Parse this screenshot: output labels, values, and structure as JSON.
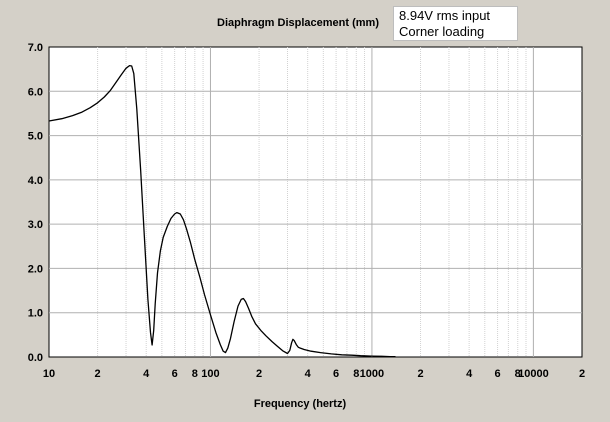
{
  "colors": {
    "background": "#d4d0c8",
    "plot_background": "#ffffff",
    "grid_major": "#b0b0b0",
    "grid_minor": "#d2d2d2",
    "curve": "#000000"
  },
  "annotation": {
    "line1": "8.94V rms input",
    "line2": "Corner loading"
  },
  "chart_data": {
    "type": "line",
    "title": "Diaphragm Displacement (mm)",
    "xlabel": "Frequency (hertz)",
    "ylabel": "",
    "x_scale": "log",
    "xlim": [
      10,
      20000
    ],
    "ylim": [
      0,
      7
    ],
    "grid": true,
    "y_ticks": [
      "0.0",
      "1.0",
      "2.0",
      "3.0",
      "4.0",
      "5.0",
      "6.0",
      "7.0"
    ],
    "x_ticks": [
      {
        "value": 10,
        "label": "10"
      },
      {
        "value": 20,
        "label": "2"
      },
      {
        "value": 40,
        "label": "4"
      },
      {
        "value": 60,
        "label": "6"
      },
      {
        "value": 80,
        "label": "8"
      },
      {
        "value": 100,
        "label": "100"
      },
      {
        "value": 200,
        "label": "2"
      },
      {
        "value": 400,
        "label": "4"
      },
      {
        "value": 600,
        "label": "6"
      },
      {
        "value": 800,
        "label": "8"
      },
      {
        "value": 1000,
        "label": "1000"
      },
      {
        "value": 2000,
        "label": "2"
      },
      {
        "value": 4000,
        "label": "4"
      },
      {
        "value": 6000,
        "label": "6"
      },
      {
        "value": 8000,
        "label": "8"
      },
      {
        "value": 10000,
        "label": "10000"
      },
      {
        "value": 20000,
        "label": "2"
      }
    ],
    "series": [
      {
        "x": [
          10,
          12,
          14,
          16,
          18,
          20,
          22,
          24,
          26,
          28,
          30,
          31.5,
          32.5,
          33.5,
          35,
          37,
          39,
          41,
          42.5,
          43.5,
          44.5,
          45.5,
          47,
          49,
          51,
          54,
          57,
          60,
          62,
          65,
          68,
          71,
          75,
          80,
          86,
          92,
          100,
          108,
          115,
          120,
          124,
          128,
          133,
          140,
          148,
          155,
          160,
          165,
          172,
          180,
          190,
          205,
          220,
          240,
          260,
          280,
          300,
          310,
          318,
          324,
          330,
          340,
          350,
          360,
          380,
          420,
          480,
          560,
          650,
          750,
          850,
          1000,
          1150,
          1300,
          1400
        ],
        "y": [
          5.33,
          5.38,
          5.45,
          5.53,
          5.63,
          5.74,
          5.87,
          6.02,
          6.2,
          6.37,
          6.52,
          6.58,
          6.57,
          6.4,
          5.6,
          4.2,
          2.7,
          1.3,
          0.55,
          0.27,
          0.6,
          1.2,
          1.9,
          2.4,
          2.7,
          2.95,
          3.13,
          3.23,
          3.26,
          3.23,
          3.1,
          2.9,
          2.6,
          2.2,
          1.8,
          1.4,
          0.95,
          0.55,
          0.28,
          0.13,
          0.1,
          0.2,
          0.42,
          0.8,
          1.15,
          1.3,
          1.32,
          1.25,
          1.1,
          0.92,
          0.75,
          0.6,
          0.48,
          0.35,
          0.24,
          0.14,
          0.08,
          0.15,
          0.32,
          0.4,
          0.37,
          0.28,
          0.22,
          0.2,
          0.17,
          0.13,
          0.1,
          0.07,
          0.05,
          0.04,
          0.03,
          0.02,
          0.015,
          0.01,
          0.01
        ]
      }
    ]
  }
}
